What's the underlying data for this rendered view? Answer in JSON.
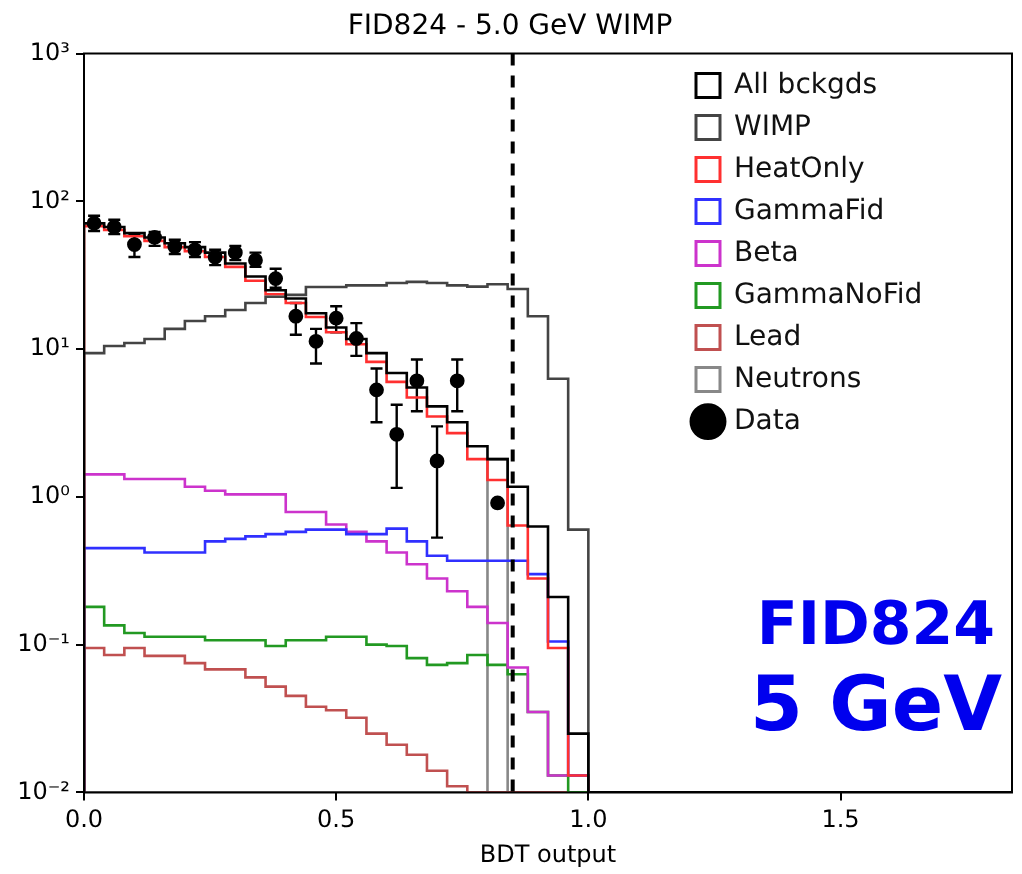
{
  "chart_data": {
    "type": "histogram",
    "title": "FID824 - 5.0 GeV WIMP",
    "xlabel": "BDT output",
    "bins": [
      0,
      0.04,
      0.08,
      0.12,
      0.16,
      0.2,
      0.24,
      0.28,
      0.32,
      0.36,
      0.4,
      0.44,
      0.48,
      0.52,
      0.56,
      0.6,
      0.64,
      0.68,
      0.72,
      0.76,
      0.8,
      0.84,
      0.88,
      0.92,
      0.96,
      1.0
    ],
    "series": [
      {
        "name": "All bckgds",
        "color": "#000000",
        "values": [
          71,
          67,
          61,
          57,
          52,
          49,
          45,
          38,
          31,
          25,
          22,
          17.5,
          14,
          11.7,
          9.4,
          6.9,
          5.5,
          4.1,
          3.2,
          2.2,
          1.8,
          1.17,
          0.63,
          0.21,
          0.025
        ]
      },
      {
        "name": "WIMP",
        "color": "#444444",
        "values": [
          9.4,
          10.5,
          11,
          11.7,
          13.7,
          15.5,
          16.7,
          18.4,
          20.5,
          22.6,
          23.3,
          26.3,
          26.3,
          27,
          27,
          28,
          28.5,
          28,
          27,
          26.5,
          27.5,
          25.5,
          16.7,
          6.3,
          0.6
        ]
      },
      {
        "name": "HeatOnly",
        "color": "#ff3030",
        "values": [
          68,
          64,
          58,
          54,
          49,
          46,
          42,
          36,
          29,
          23.5,
          20.5,
          16.5,
          13,
          10.8,
          8.2,
          6,
          4.7,
          3.5,
          2.7,
          1.8,
          1.3,
          0.64,
          0.28,
          0.095,
          0.013
        ]
      },
      {
        "name": "GammaFid",
        "color": "#3030ff",
        "values": [
          0.45,
          0.45,
          0.45,
          0.42,
          0.42,
          0.42,
          0.5,
          0.52,
          0.54,
          0.56,
          0.58,
          0.6,
          0.6,
          0.56,
          0.56,
          0.61,
          0.5,
          0.4,
          0.37,
          0.37,
          0.37,
          0.37,
          0.3,
          0.105,
          0.013
        ]
      },
      {
        "name": "Beta",
        "color": "#cc33cc",
        "values": [
          1.42,
          1.42,
          1.32,
          1.32,
          1.32,
          1.17,
          1.1,
          1.04,
          1.04,
          1.04,
          0.79,
          0.79,
          0.65,
          0.58,
          0.5,
          0.42,
          0.35,
          0.28,
          0.23,
          0.18,
          0.14,
          0.07,
          0.035,
          0.013,
          0.013
        ]
      },
      {
        "name": "GammaNoFid",
        "color": "#229922",
        "values": [
          0.18,
          0.135,
          0.12,
          0.113,
          0.113,
          0.113,
          0.107,
          0.107,
          0.107,
          0.098,
          0.107,
          0.107,
          0.113,
          0.113,
          0.1,
          0.098,
          0.081,
          0.073,
          0.075,
          0.085,
          0.073,
          0.063,
          0.035,
          0.013,
          null
        ]
      },
      {
        "name": "Lead",
        "color": "#c05050",
        "values": [
          0.095,
          0.085,
          0.095,
          0.084,
          0.084,
          0.075,
          0.068,
          0.068,
          0.06,
          0.052,
          0.045,
          0.038,
          0.036,
          0.032,
          0.025,
          0.021,
          0.018,
          0.014,
          0.011,
          null,
          null,
          null,
          null,
          null,
          null
        ]
      },
      {
        "name": "Neutrons",
        "color": "#888888",
        "values": [
          null,
          null,
          null,
          null,
          null,
          null,
          null,
          null,
          null,
          null,
          null,
          null,
          null,
          null,
          null,
          null,
          null,
          null,
          null,
          null,
          1.8,
          null,
          null,
          null,
          null
        ]
      },
      {
        "name": "Data",
        "type": "scatter",
        "color": "#000000",
        "x": [
          0.02,
          0.06,
          0.1,
          0.14,
          0.18,
          0.22,
          0.26,
          0.3,
          0.34,
          0.38,
          0.42,
          0.46,
          0.5,
          0.54,
          0.58,
          0.62,
          0.66,
          0.7,
          0.74,
          0.82
        ],
        "values": [
          71,
          67,
          51,
          57,
          49.5,
          47,
          42,
          45,
          40,
          30,
          16.7,
          11.3,
          16.2,
          11.8,
          5.3,
          2.65,
          6.1,
          1.75,
          6.1,
          0.91
        ],
        "errors": [
          [
            63,
            80
          ],
          [
            60,
            75
          ],
          [
            42,
            60
          ],
          [
            50,
            62
          ],
          [
            44,
            55
          ],
          [
            42,
            53
          ],
          [
            37,
            47
          ],
          [
            40,
            50
          ],
          [
            36,
            45
          ],
          [
            26,
            35
          ],
          [
            12.5,
            20.5
          ],
          [
            8,
            13.7
          ],
          [
            13,
            19.5
          ],
          [
            9,
            15
          ],
          [
            3.2,
            7.4
          ],
          [
            1.15,
            4.2
          ],
          [
            3.8,
            8.5
          ],
          [
            0.53,
            3.0
          ],
          [
            3.8,
            8.5
          ],
          null
        ]
      }
    ],
    "xlim": [
      0,
      1.84
    ],
    "xticks": [
      {
        "value": 0,
        "label": "0.0"
      },
      {
        "value": 0.5,
        "label": "0.5"
      },
      {
        "value": 1,
        "label": "1.0"
      },
      {
        "value": 1.5,
        "label": "1.5"
      }
    ],
    "log": "y",
    "ylim": [
      0.01,
      1000
    ],
    "yticks": [
      {
        "value": 0.01,
        "label": "10⁻²"
      },
      {
        "value": 0.1,
        "label": "10⁻¹"
      },
      {
        "value": 1,
        "label": "10⁰"
      },
      {
        "value": 10,
        "label": "10¹"
      },
      {
        "value": 100,
        "label": "10²"
      },
      {
        "value": 1000,
        "label": "10³"
      }
    ],
    "ref_lines": [
      {
        "axis": "x",
        "value": 0.85,
        "color": "#000000",
        "line_style": "dashed"
      }
    ],
    "annotations": [
      "FID824",
      "5 GeV"
    ],
    "legend": "top right",
    "grid": false
  }
}
